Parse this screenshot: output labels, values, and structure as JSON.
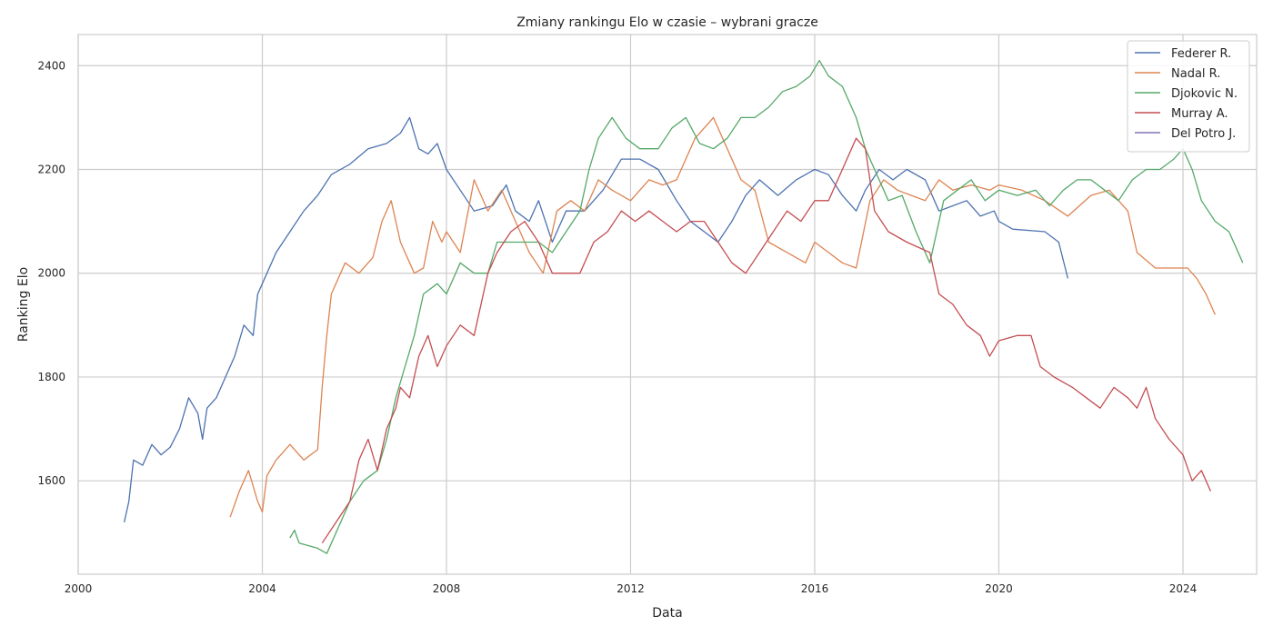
{
  "chart_data": {
    "type": "line",
    "title": "Zmiany rankingu Elo w czasie – wybrani gracze",
    "xlabel": "Data",
    "ylabel": "Ranking Elo",
    "xlim": [
      2000.0,
      2025.6
    ],
    "ylim": [
      1420,
      2460
    ],
    "x_ticks": [
      2000,
      2004,
      2008,
      2012,
      2016,
      2020,
      2024
    ],
    "y_ticks": [
      1600,
      1800,
      2000,
      2200,
      2400
    ],
    "grid": true,
    "legend_position": "top-right",
    "series": [
      {
        "name": "Federer R.",
        "color": "#4c72b0",
        "points": [
          [
            2001.0,
            1520
          ],
          [
            2001.1,
            1560
          ],
          [
            2001.2,
            1640
          ],
          [
            2001.4,
            1630
          ],
          [
            2001.6,
            1670
          ],
          [
            2001.8,
            1650
          ],
          [
            2002.0,
            1665
          ],
          [
            2002.2,
            1700
          ],
          [
            2002.4,
            1760
          ],
          [
            2002.6,
            1730
          ],
          [
            2002.7,
            1680
          ],
          [
            2002.8,
            1740
          ],
          [
            2003.0,
            1760
          ],
          [
            2003.2,
            1800
          ],
          [
            2003.4,
            1840
          ],
          [
            2003.6,
            1900
          ],
          [
            2003.8,
            1880
          ],
          [
            2003.9,
            1960
          ],
          [
            2004.1,
            2000
          ],
          [
            2004.3,
            2040
          ],
          [
            2004.6,
            2080
          ],
          [
            2004.9,
            2120
          ],
          [
            2005.2,
            2150
          ],
          [
            2005.5,
            2190
          ],
          [
            2005.9,
            2210
          ],
          [
            2006.3,
            2240
          ],
          [
            2006.7,
            2250
          ],
          [
            2007.0,
            2270
          ],
          [
            2007.2,
            2300
          ],
          [
            2007.4,
            2240
          ],
          [
            2007.6,
            2230
          ],
          [
            2007.8,
            2250
          ],
          [
            2008.0,
            2200
          ],
          [
            2008.3,
            2160
          ],
          [
            2008.6,
            2120
          ],
          [
            2009.0,
            2130
          ],
          [
            2009.3,
            2170
          ],
          [
            2009.5,
            2120
          ],
          [
            2009.8,
            2100
          ],
          [
            2010.0,
            2140
          ],
          [
            2010.3,
            2060
          ],
          [
            2010.6,
            2120
          ],
          [
            2011.0,
            2120
          ],
          [
            2011.4,
            2160
          ],
          [
            2011.8,
            2220
          ],
          [
            2012.2,
            2220
          ],
          [
            2012.6,
            2200
          ],
          [
            2013.0,
            2140
          ],
          [
            2013.3,
            2100
          ],
          [
            2013.6,
            2080
          ],
          [
            2013.9,
            2060
          ],
          [
            2014.2,
            2100
          ],
          [
            2014.5,
            2150
          ],
          [
            2014.8,
            2180
          ],
          [
            2015.2,
            2150
          ],
          [
            2015.6,
            2180
          ],
          [
            2016.0,
            2200
          ],
          [
            2016.3,
            2190
          ],
          [
            2016.6,
            2150
          ],
          [
            2016.9,
            2120
          ],
          [
            2017.1,
            2160
          ],
          [
            2017.4,
            2200
          ],
          [
            2017.7,
            2180
          ],
          [
            2018.0,
            2200
          ],
          [
            2018.4,
            2180
          ],
          [
            2018.7,
            2120
          ],
          [
            2019.0,
            2130
          ],
          [
            2019.3,
            2140
          ],
          [
            2019.6,
            2110
          ],
          [
            2019.9,
            2120
          ],
          [
            2020.0,
            2100
          ],
          [
            2020.3,
            2085
          ],
          [
            2021.0,
            2080
          ],
          [
            2021.3,
            2060
          ],
          [
            2021.5,
            1990
          ]
        ]
      },
      {
        "name": "Nadal R.",
        "color": "#dd8452",
        "points": [
          [
            2003.3,
            1530
          ],
          [
            2003.5,
            1580
          ],
          [
            2003.7,
            1620
          ],
          [
            2003.9,
            1560
          ],
          [
            2004.0,
            1540
          ],
          [
            2004.1,
            1610
          ],
          [
            2004.3,
            1640
          ],
          [
            2004.6,
            1670
          ],
          [
            2004.9,
            1640
          ],
          [
            2005.2,
            1660
          ],
          [
            2005.3,
            1780
          ],
          [
            2005.4,
            1880
          ],
          [
            2005.5,
            1960
          ],
          [
            2005.8,
            2020
          ],
          [
            2006.1,
            2000
          ],
          [
            2006.4,
            2030
          ],
          [
            2006.6,
            2100
          ],
          [
            2006.8,
            2140
          ],
          [
            2007.0,
            2060
          ],
          [
            2007.3,
            2000
          ],
          [
            2007.5,
            2010
          ],
          [
            2007.7,
            2100
          ],
          [
            2007.9,
            2060
          ],
          [
            2008.0,
            2080
          ],
          [
            2008.3,
            2040
          ],
          [
            2008.6,
            2180
          ],
          [
            2008.9,
            2120
          ],
          [
            2009.2,
            2160
          ],
          [
            2009.5,
            2100
          ],
          [
            2009.8,
            2040
          ],
          [
            2010.1,
            2000
          ],
          [
            2010.4,
            2120
          ],
          [
            2010.7,
            2140
          ],
          [
            2011.0,
            2120
          ],
          [
            2011.3,
            2180
          ],
          [
            2011.6,
            2160
          ],
          [
            2012.0,
            2140
          ],
          [
            2012.4,
            2180
          ],
          [
            2012.7,
            2170
          ],
          [
            2013.0,
            2180
          ],
          [
            2013.4,
            2260
          ],
          [
            2013.8,
            2300
          ],
          [
            2014.1,
            2240
          ],
          [
            2014.4,
            2180
          ],
          [
            2014.7,
            2160
          ],
          [
            2015.0,
            2060
          ],
          [
            2015.4,
            2040
          ],
          [
            2015.8,
            2020
          ],
          [
            2016.0,
            2060
          ],
          [
            2016.3,
            2040
          ],
          [
            2016.6,
            2020
          ],
          [
            2016.9,
            2010
          ],
          [
            2017.2,
            2140
          ],
          [
            2017.5,
            2180
          ],
          [
            2017.8,
            2160
          ],
          [
            2018.1,
            2150
          ],
          [
            2018.4,
            2140
          ],
          [
            2018.7,
            2180
          ],
          [
            2019.0,
            2160
          ],
          [
            2019.4,
            2170
          ],
          [
            2019.8,
            2160
          ],
          [
            2020.0,
            2170
          ],
          [
            2020.5,
            2160
          ],
          [
            2021.0,
            2140
          ],
          [
            2021.5,
            2110
          ],
          [
            2022.0,
            2150
          ],
          [
            2022.4,
            2160
          ],
          [
            2022.8,
            2120
          ],
          [
            2023.0,
            2040
          ],
          [
            2023.4,
            2010
          ],
          [
            2024.1,
            2010
          ],
          [
            2024.3,
            1990
          ],
          [
            2024.5,
            1960
          ],
          [
            2024.7,
            1920
          ]
        ]
      },
      {
        "name": "Djokovic N.",
        "color": "#55a868",
        "points": [
          [
            2004.6,
            1490
          ],
          [
            2004.7,
            1505
          ],
          [
            2004.8,
            1480
          ],
          [
            2005.2,
            1470
          ],
          [
            2005.4,
            1460
          ],
          [
            2005.7,
            1520
          ],
          [
            2005.9,
            1560
          ],
          [
            2006.2,
            1600
          ],
          [
            2006.5,
            1620
          ],
          [
            2006.7,
            1680
          ],
          [
            2006.9,
            1760
          ],
          [
            2007.1,
            1820
          ],
          [
            2007.3,
            1880
          ],
          [
            2007.5,
            1960
          ],
          [
            2007.8,
            1980
          ],
          [
            2008.0,
            1960
          ],
          [
            2008.3,
            2020
          ],
          [
            2008.6,
            2000
          ],
          [
            2008.9,
            2000
          ],
          [
            2009.1,
            2060
          ],
          [
            2009.4,
            2060
          ],
          [
            2009.7,
            2060
          ],
          [
            2010.0,
            2060
          ],
          [
            2010.3,
            2040
          ],
          [
            2010.6,
            2080
          ],
          [
            2010.9,
            2120
          ],
          [
            2011.1,
            2200
          ],
          [
            2011.3,
            2260
          ],
          [
            2011.6,
            2300
          ],
          [
            2011.9,
            2260
          ],
          [
            2012.2,
            2240
          ],
          [
            2012.6,
            2240
          ],
          [
            2012.9,
            2280
          ],
          [
            2013.2,
            2300
          ],
          [
            2013.5,
            2250
          ],
          [
            2013.8,
            2240
          ],
          [
            2014.1,
            2260
          ],
          [
            2014.4,
            2300
          ],
          [
            2014.7,
            2300
          ],
          [
            2015.0,
            2320
          ],
          [
            2015.3,
            2350
          ],
          [
            2015.6,
            2360
          ],
          [
            2015.9,
            2380
          ],
          [
            2016.1,
            2410
          ],
          [
            2016.3,
            2380
          ],
          [
            2016.6,
            2360
          ],
          [
            2016.9,
            2300
          ],
          [
            2017.1,
            2240
          ],
          [
            2017.3,
            2200
          ],
          [
            2017.6,
            2140
          ],
          [
            2017.9,
            2150
          ],
          [
            2018.2,
            2080
          ],
          [
            2018.5,
            2020
          ],
          [
            2018.8,
            2140
          ],
          [
            2019.1,
            2160
          ],
          [
            2019.4,
            2180
          ],
          [
            2019.7,
            2140
          ],
          [
            2020.0,
            2160
          ],
          [
            2020.4,
            2150
          ],
          [
            2020.8,
            2160
          ],
          [
            2021.1,
            2130
          ],
          [
            2021.4,
            2160
          ],
          [
            2021.7,
            2180
          ],
          [
            2022.0,
            2180
          ],
          [
            2022.3,
            2160
          ],
          [
            2022.6,
            2140
          ],
          [
            2022.9,
            2180
          ],
          [
            2023.2,
            2200
          ],
          [
            2023.5,
            2200
          ],
          [
            2023.8,
            2220
          ],
          [
            2024.0,
            2240
          ],
          [
            2024.2,
            2200
          ],
          [
            2024.4,
            2140
          ],
          [
            2024.7,
            2100
          ],
          [
            2025.0,
            2080
          ],
          [
            2025.3,
            2020
          ]
        ]
      },
      {
        "name": "Murray A.",
        "color": "#c44e52",
        "points": [
          [
            2005.3,
            1480
          ],
          [
            2005.6,
            1520
          ],
          [
            2005.9,
            1560
          ],
          [
            2006.1,
            1640
          ],
          [
            2006.3,
            1680
          ],
          [
            2006.5,
            1620
          ],
          [
            2006.7,
            1700
          ],
          [
            2006.9,
            1740
          ],
          [
            2007.0,
            1780
          ],
          [
            2007.2,
            1760
          ],
          [
            2007.4,
            1840
          ],
          [
            2007.6,
            1880
          ],
          [
            2007.8,
            1820
          ],
          [
            2008.0,
            1860
          ],
          [
            2008.3,
            1900
          ],
          [
            2008.6,
            1880
          ],
          [
            2008.9,
            2000
          ],
          [
            2009.1,
            2040
          ],
          [
            2009.4,
            2080
          ],
          [
            2009.7,
            2100
          ],
          [
            2010.0,
            2060
          ],
          [
            2010.3,
            2000
          ],
          [
            2010.6,
            2000
          ],
          [
            2010.9,
            2000
          ],
          [
            2011.2,
            2060
          ],
          [
            2011.5,
            2080
          ],
          [
            2011.8,
            2120
          ],
          [
            2012.1,
            2100
          ],
          [
            2012.4,
            2120
          ],
          [
            2012.7,
            2100
          ],
          [
            2013.0,
            2080
          ],
          [
            2013.3,
            2100
          ],
          [
            2013.6,
            2100
          ],
          [
            2013.9,
            2060
          ],
          [
            2014.2,
            2020
          ],
          [
            2014.5,
            2000
          ],
          [
            2014.8,
            2040
          ],
          [
            2015.1,
            2080
          ],
          [
            2015.4,
            2120
          ],
          [
            2015.7,
            2100
          ],
          [
            2016.0,
            2140
          ],
          [
            2016.3,
            2140
          ],
          [
            2016.6,
            2200
          ],
          [
            2016.9,
            2260
          ],
          [
            2017.1,
            2240
          ],
          [
            2017.3,
            2120
          ],
          [
            2017.6,
            2080
          ],
          [
            2018.0,
            2060
          ],
          [
            2018.5,
            2040
          ],
          [
            2018.7,
            1960
          ],
          [
            2019.0,
            1940
          ],
          [
            2019.3,
            1900
          ],
          [
            2019.6,
            1880
          ],
          [
            2019.8,
            1840
          ],
          [
            2020.0,
            1870
          ],
          [
            2020.4,
            1880
          ],
          [
            2020.7,
            1880
          ],
          [
            2020.9,
            1820
          ],
          [
            2021.2,
            1800
          ],
          [
            2021.6,
            1780
          ],
          [
            2021.9,
            1760
          ],
          [
            2022.2,
            1740
          ],
          [
            2022.5,
            1780
          ],
          [
            2022.8,
            1760
          ],
          [
            2023.0,
            1740
          ],
          [
            2023.2,
            1780
          ],
          [
            2023.4,
            1720
          ],
          [
            2023.7,
            1680
          ],
          [
            2024.0,
            1650
          ],
          [
            2024.2,
            1600
          ],
          [
            2024.4,
            1620
          ],
          [
            2024.6,
            1580
          ]
        ]
      },
      {
        "name": "Del Potro J.",
        "color": "#8172b2",
        "points": []
      }
    ]
  }
}
